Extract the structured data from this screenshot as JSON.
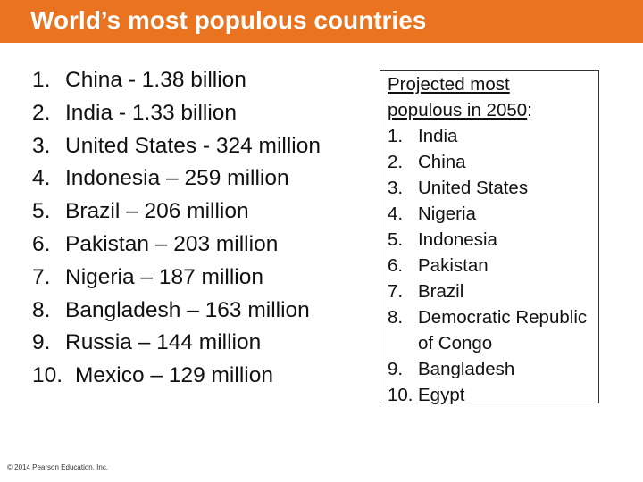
{
  "title": "World’s most populous countries",
  "current": [
    {
      "num": "1.",
      "text": "China - 1.38 billion"
    },
    {
      "num": "2.",
      "text": "India - 1.33 billion"
    },
    {
      "num": "3.",
      "text": "United States - 324 million"
    },
    {
      "num": "4.",
      "text": "Indonesia – 259 million"
    },
    {
      "num": "5.",
      "text": "Brazil – 206 million"
    },
    {
      "num": "6.",
      "text": "Pakistan – 203 million"
    },
    {
      "num": "7.",
      "text": "Nigeria – 187 million"
    },
    {
      "num": "8.",
      "text": "Bangladesh – 163 million"
    },
    {
      "num": "9.",
      "text": "Russia – 144 million"
    },
    {
      "num": "10.",
      "text": "Mexico – 129 million"
    }
  ],
  "projected": {
    "heading_line1": "Projected most",
    "heading_line2": "populous in 2050",
    "heading_suffix": ":",
    "items": [
      {
        "num": "1.",
        "text": "India"
      },
      {
        "num": "2.",
        "text": "China"
      },
      {
        "num": "3.",
        "text": "United States"
      },
      {
        "num": "4.",
        "text": "Nigeria"
      },
      {
        "num": "5.",
        "text": "Indonesia"
      },
      {
        "num": "6.",
        "text": "Pakistan"
      },
      {
        "num": "7.",
        "text": "Brazil"
      },
      {
        "num": "8.",
        "text": "Democratic Republic of Congo"
      },
      {
        "num": "9.",
        "text": "Bangladesh"
      },
      {
        "num": "10.",
        "text": "Egypt"
      }
    ]
  },
  "footer": "© 2014 Pearson Education, Inc.",
  "colors": {
    "title_bar": "#e9731e",
    "title_text": "#ffffff",
    "body_text": "#111111"
  }
}
